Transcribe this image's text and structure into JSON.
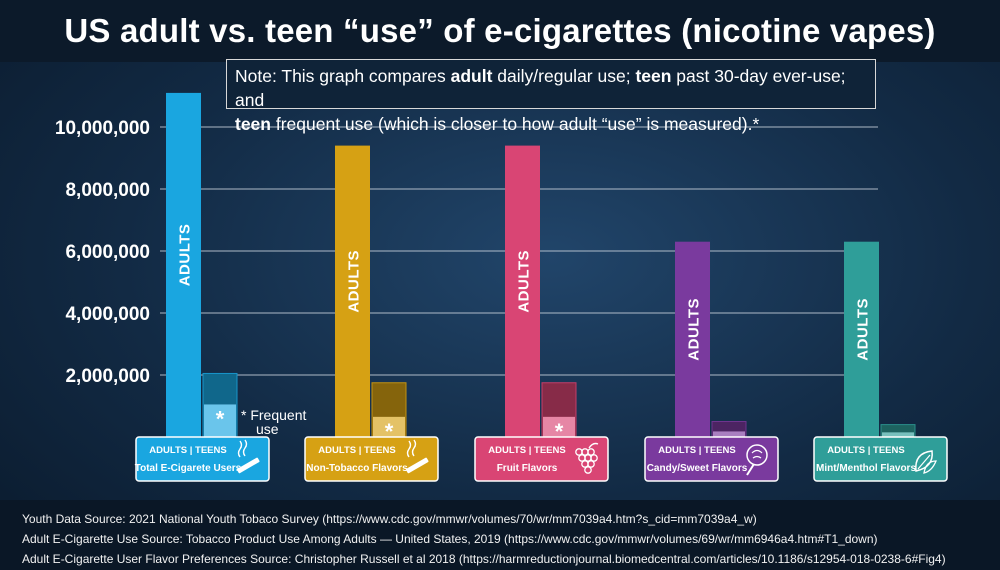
{
  "title": "US adult vs. teen “use” of e-cigarettes (nicotine vapes)",
  "note": {
    "p1": "Note:  This graph compares ",
    "b1": "adult",
    "p2": " daily/regular use; ",
    "b2": "teen",
    "p3": " past 30-day ever-use; and",
    "b3": "teen",
    "p4": " frequent use (which is closer to how adult “use” is measured).*"
  },
  "frequent_note": {
    "line1": "* Frequent",
    "line2": "use",
    "asterisk": "*"
  },
  "label_header": "ADULTS | TEENS",
  "adult_bar_label": "ADULTS",
  "sources": [
    "Youth Data Source: 2021 National Youth Tobaco Survey (https://www.cdc.gov/mmwr/volumes/70/wr/mm7039a4.htm?s_cid=mm7039a4_w)",
    "Adult E-Cigarette Use Source: Tobacco Product Use Among Adults — United States, 2019 (https://www.cdc.gov/mmwr/volumes/69/wr/mm6946a4.htm#T1_down)",
    "Adult E-Cigarette User Flavor Preferences Source: Christopher Russell et al 2018 (https://harmreductionjournal.biomedcentral.com/articles/10.1186/s12954-018-0238-6#Fig4)"
  ],
  "chart_data": {
    "type": "bar",
    "categories": [
      "Total E-Cigarete Users",
      "Non-Tobacco Flavors",
      "Fruit Flavors",
      "Candy/Sweet Flavors",
      "Mint/Menthol Flavors"
    ],
    "icons": [
      "vape-pen-icon",
      "vape-pen-icon",
      "grapes-icon",
      "cotton-candy-icon",
      "mint-leaf-icon"
    ],
    "colors": [
      "#1aa6e0",
      "#d6a114",
      "#d94574",
      "#7a3a9e",
      "#2f9e99"
    ],
    "series": [
      {
        "name": "ADULTS",
        "values": [
          11100000,
          9400000,
          9400000,
          6300000,
          6300000
        ]
      },
      {
        "name": "TEENS",
        "values": [
          2050000,
          1750000,
          1750000,
          500000,
          400000
        ]
      },
      {
        "values": [
          1050000,
          650000,
          650000,
          180000,
          150000
        ]
      }
    ],
    "yticks": [
      2000000,
      4000000,
      6000000,
      8000000,
      10000000
    ],
    "ytick_labels": [
      "2,000,000",
      "4,000,000",
      "6,000,000",
      "8,000,000",
      "10,000,000"
    ],
    "ylim": [
      0,
      11200000
    ],
    "grid": true
  }
}
